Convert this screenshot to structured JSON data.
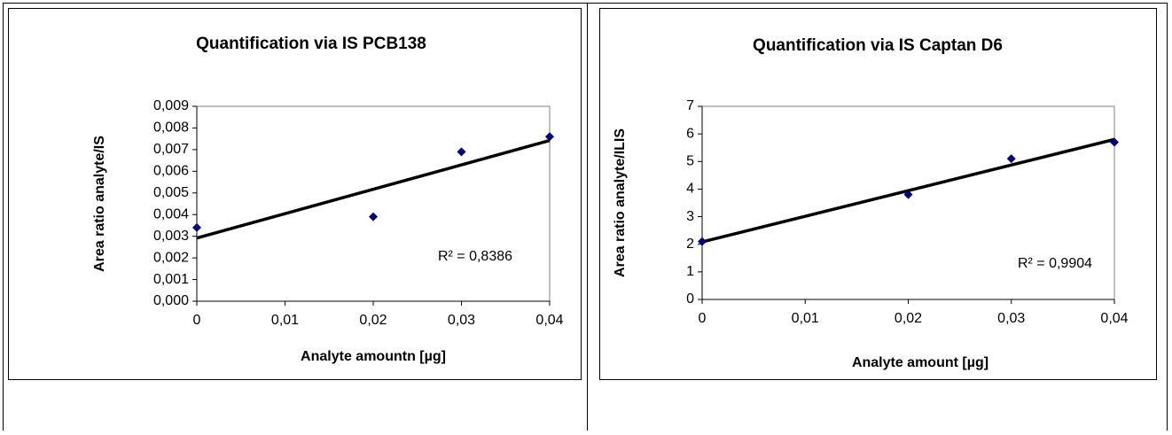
{
  "chart_data": [
    {
      "type": "scatter",
      "title": "Quantification via IS PCB138",
      "x_label": "Analyte amountn [µg]",
      "y_label": "Area ratio analyte/IS",
      "annotation": "R² = 0,8386",
      "x": [
        0,
        0.02,
        0.03,
        0.04
      ],
      "series": [
        {
          "name": "data",
          "color": "#000080",
          "values": [
            0.0034,
            0.0039,
            0.0069,
            0.0076
          ]
        }
      ],
      "trendline": "linear",
      "xlim": [
        0,
        0.04
      ],
      "xticks": [
        0,
        {
          "value": 0.01,
          "label": "0,01"
        },
        {
          "value": 0.02,
          "label": "0,02"
        },
        {
          "value": 0.03,
          "label": "0,03"
        },
        {
          "value": 0.04,
          "label": "0,04"
        }
      ],
      "ylim": [
        0,
        0.009
      ],
      "yticks": [
        {
          "value": 0,
          "label": "0,000"
        },
        {
          "value": 0.001,
          "label": "0,001"
        },
        {
          "value": 0.002,
          "label": "0,002"
        },
        {
          "value": 0.003,
          "label": "0,003"
        },
        {
          "value": 0.004,
          "label": "0,004"
        },
        {
          "value": 0.005,
          "label": "0,005"
        },
        {
          "value": 0.006,
          "label": "0,006"
        },
        {
          "value": 0.007,
          "label": "0,007"
        },
        {
          "value": 0.008,
          "label": "0,008"
        },
        {
          "value": 0.009,
          "label": "0,009"
        }
      ]
    },
    {
      "type": "scatter",
      "title": "Quantification via IS Captan D6",
      "x_label": "Analyte amount [µg]",
      "y_label": "Area ratio analyte/ILIS",
      "annotation": "R² = 0,9904",
      "x": [
        0,
        0.02,
        0.03,
        0.04
      ],
      "series": [
        {
          "name": "data",
          "color": "#000080",
          "values": [
            2.1,
            3.8,
            5.1,
            5.7
          ]
        }
      ],
      "trendline": "linear",
      "xlim": [
        0,
        0.04
      ],
      "xticks": [
        0,
        {
          "value": 0.01,
          "label": "0,01"
        },
        {
          "value": 0.02,
          "label": "0,02"
        },
        {
          "value": 0.03,
          "label": "0,03"
        },
        {
          "value": 0.04,
          "label": "0,04"
        }
      ],
      "ylim": [
        0,
        7
      ],
      "yticks": [
        0,
        1,
        2,
        3,
        4,
        5,
        6,
        7
      ]
    }
  ]
}
